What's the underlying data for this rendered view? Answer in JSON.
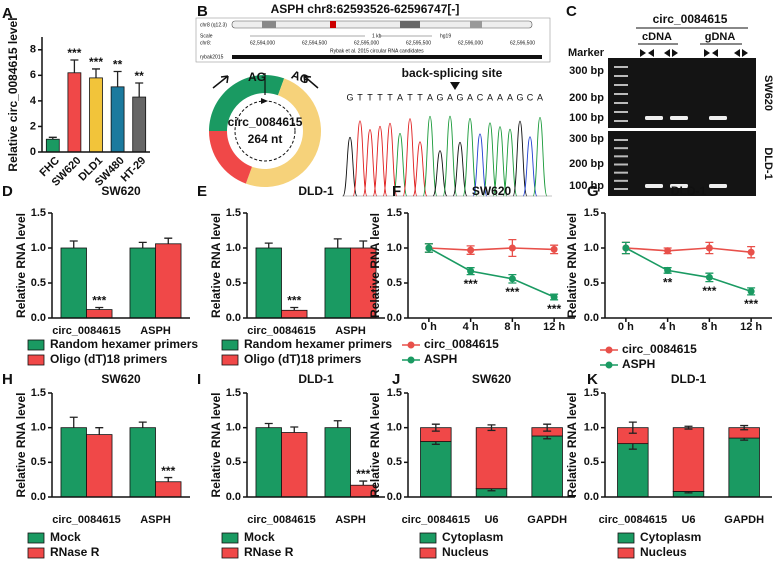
{
  "chart_data": [
    {
      "type": "bar",
      "panel": "A",
      "ylabel": "Relative circ_0084615 level",
      "categories": [
        "FHC",
        "SW620",
        "DLD1",
        "SW480",
        "HT-29"
      ],
      "values": [
        1.0,
        6.2,
        5.8,
        5.1,
        4.3
      ],
      "errors": [
        0.15,
        1.0,
        0.7,
        1.2,
        1.1
      ],
      "colors": [
        "#1a9a62",
        "#f04848",
        "#f2c43a",
        "#1b7a9e",
        "#666666"
      ],
      "annotations": [
        null,
        "***",
        "***",
        "**",
        "**"
      ],
      "ylim": [
        0,
        9
      ],
      "yticks": [
        0,
        2,
        4,
        6,
        8
      ]
    },
    {
      "type": "grouped_bar",
      "panel": "D",
      "title": "SW620",
      "ylabel": "Relative RNA level",
      "categories": [
        "circ_0084615",
        "ASPH"
      ],
      "series": [
        {
          "name": "Random hexamer primers",
          "color": "#1a9a62",
          "values": [
            1.0,
            1.0
          ],
          "errors": [
            0.1,
            0.08
          ],
          "annotations": [
            null,
            null
          ]
        },
        {
          "name": "Oligo (dT)18 primers",
          "color": "#f04848",
          "values": [
            0.12,
            1.06
          ],
          "errors": [
            0.03,
            0.08
          ],
          "annotations": [
            "***",
            null
          ]
        }
      ],
      "ylim": [
        0,
        1.5
      ],
      "yticks": [
        {
          "value": 0,
          "label": "0.0"
        },
        {
          "value": 0.5,
          "label": "0.5"
        },
        {
          "value": 1,
          "label": "1.0"
        },
        {
          "value": 1.5,
          "label": "1.5"
        }
      ]
    },
    {
      "type": "grouped_bar",
      "panel": "E",
      "title": "DLD-1",
      "ylabel": "Relative RNA level",
      "categories": [
        "circ_0084615",
        "ASPH"
      ],
      "series": [
        {
          "name": "Random hexamer primers",
          "color": "#1a9a62",
          "values": [
            1.0,
            1.0
          ],
          "errors": [
            0.07,
            0.13
          ],
          "annotations": [
            null,
            null
          ]
        },
        {
          "name": "Oligo (dT)18 primers",
          "color": "#f04848",
          "values": [
            0.11,
            1.0
          ],
          "errors": [
            0.04,
            0.1
          ],
          "annotations": [
            "***",
            null
          ]
        }
      ],
      "ylim": [
        0,
        1.5
      ],
      "yticks": [
        {
          "value": 0,
          "label": "0.0"
        },
        {
          "value": 0.5,
          "label": "0.5"
        },
        {
          "value": 1,
          "label": "1.0"
        },
        {
          "value": 1.5,
          "label": "1.5"
        }
      ]
    },
    {
      "type": "line",
      "panel": "F",
      "title": "SW620",
      "ylabel": "Relative RNA level",
      "categories": [
        "0 h",
        "4 h",
        "8 h",
        "12 h"
      ],
      "series": [
        {
          "name": "circ_0084615",
          "color": "#e8504a",
          "values": [
            1.0,
            0.97,
            1.0,
            0.98
          ],
          "errors": [
            0.06,
            0.06,
            0.12,
            0.06
          ],
          "annotations": [
            null,
            null,
            null,
            null
          ]
        },
        {
          "name": "ASPH",
          "color": "#1a9a62",
          "values": [
            1.0,
            0.67,
            0.56,
            0.3
          ],
          "errors": [
            0.06,
            0.05,
            0.06,
            0.04
          ],
          "annotations": [
            null,
            "***",
            "***",
            "***"
          ]
        }
      ],
      "ylim": [
        0,
        1.5
      ],
      "yticks": [
        {
          "value": 0,
          "label": "0.0"
        },
        {
          "value": 0.5,
          "label": "0.5"
        },
        {
          "value": 1,
          "label": "1.0"
        },
        {
          "value": 1.5,
          "label": "1.5"
        }
      ]
    },
    {
      "type": "line",
      "panel": "G",
      "title": "DLD-1",
      "ylabel": "Relative RNA level",
      "categories": [
        "0 h",
        "4 h",
        "8 h",
        "12 h"
      ],
      "series": [
        {
          "name": "circ_0084615",
          "color": "#e8504a",
          "values": [
            1.0,
            0.96,
            1.0,
            0.94
          ],
          "errors": [
            0.08,
            0.04,
            0.08,
            0.08
          ],
          "annotations": [
            null,
            null,
            null,
            null
          ]
        },
        {
          "name": "ASPH",
          "color": "#1a9a62",
          "values": [
            1.0,
            0.68,
            0.58,
            0.38
          ],
          "errors": [
            0.08,
            0.04,
            0.06,
            0.05
          ],
          "annotations": [
            null,
            "**",
            "***",
            "***"
          ]
        }
      ],
      "ylim": [
        0,
        1.5
      ],
      "yticks": [
        {
          "value": 0,
          "label": "0.0"
        },
        {
          "value": 0.5,
          "label": "0.5"
        },
        {
          "value": 1,
          "label": "1.0"
        },
        {
          "value": 1.5,
          "label": "1.5"
        }
      ]
    },
    {
      "type": "grouped_bar",
      "panel": "H",
      "title": "SW620",
      "ylabel": "Relative RNA level",
      "categories": [
        "circ_0084615",
        "ASPH"
      ],
      "series": [
        {
          "name": "Mock",
          "color": "#1a9a62",
          "values": [
            1.0,
            1.0
          ],
          "errors": [
            0.15,
            0.08
          ],
          "annotations": [
            null,
            null
          ]
        },
        {
          "name": "RNase R",
          "color": "#f04848",
          "values": [
            0.9,
            0.22
          ],
          "errors": [
            0.1,
            0.06
          ],
          "annotations": [
            null,
            "***"
          ]
        }
      ],
      "ylim": [
        0,
        1.5
      ],
      "yticks": [
        {
          "value": 0,
          "label": "0.0"
        },
        {
          "value": 0.5,
          "label": "0.5"
        },
        {
          "value": 1,
          "label": "1.0"
        },
        {
          "value": 1.5,
          "label": "1.5"
        }
      ]
    },
    {
      "type": "grouped_bar",
      "panel": "I",
      "title": "DLD-1",
      "ylabel": "Relative RNA level",
      "categories": [
        "circ_0084615",
        "ASPH"
      ],
      "series": [
        {
          "name": "Mock",
          "color": "#1a9a62",
          "values": [
            1.0,
            1.0
          ],
          "errors": [
            0.06,
            0.1
          ],
          "annotations": [
            null,
            null
          ]
        },
        {
          "name": "RNase R",
          "color": "#f04848",
          "values": [
            0.93,
            0.17
          ],
          "errors": [
            0.08,
            0.06
          ],
          "annotations": [
            null,
            "***"
          ]
        }
      ],
      "ylim": [
        0,
        1.5
      ],
      "yticks": [
        {
          "value": 0,
          "label": "0.0"
        },
        {
          "value": 0.5,
          "label": "0.5"
        },
        {
          "value": 1,
          "label": "1.0"
        },
        {
          "value": 1.5,
          "label": "1.5"
        }
      ]
    },
    {
      "type": "stacked_bar",
      "panel": "J",
      "title": "SW620",
      "ylabel": "Relative RNA level",
      "categories": [
        "circ_0084615",
        "U6",
        "GAPDH"
      ],
      "series": [
        {
          "name": "Cytoplasm",
          "color": "#1a9a62",
          "values": [
            0.8,
            0.12,
            0.88
          ],
          "errors": [
            0.04,
            0.03,
            0.04
          ]
        },
        {
          "name": "Nucleus",
          "color": "#f04848",
          "values": [
            0.2,
            0.88,
            0.12
          ],
          "errors": [
            0.05,
            0.04,
            0.05
          ]
        }
      ],
      "ylim": [
        0,
        1.5
      ],
      "yticks": [
        {
          "value": 0,
          "label": "0.0"
        },
        {
          "value": 0.5,
          "label": "0.5"
        },
        {
          "value": 1,
          "label": "1.0"
        },
        {
          "value": 1.5,
          "label": "1.5"
        }
      ]
    },
    {
      "type": "stacked_bar",
      "panel": "K",
      "title": "DLD-1",
      "ylabel": "Relative RNA level",
      "categories": [
        "circ_0084615",
        "U6",
        "GAPDH"
      ],
      "series": [
        {
          "name": "Cytoplasm",
          "color": "#1a9a62",
          "values": [
            0.77,
            0.08,
            0.85
          ],
          "errors": [
            0.08,
            0.02,
            0.03
          ]
        },
        {
          "name": "Nucleus",
          "color": "#f04848",
          "values": [
            0.23,
            0.92,
            0.15
          ],
          "errors": [
            0.08,
            0.02,
            0.03
          ]
        }
      ],
      "ylim": [
        0,
        1.5
      ],
      "yticks": [
        {
          "value": 0,
          "label": "0.0"
        },
        {
          "value": 0.5,
          "label": "0.5"
        },
        {
          "value": 1,
          "label": "1.0"
        },
        {
          "value": 1.5,
          "label": "1.5"
        }
      ]
    }
  ],
  "panel_b": {
    "panel": "B",
    "title": "ASPH chr8:62593526-62596747[-]",
    "browser": {
      "chromosome": "chr8 (q12.3)",
      "scale": "Scale",
      "chrom": "chr8:",
      "scale_bar": "1 kb",
      "genome": "hg19",
      "positions": [
        "62,594,000",
        "62,594,500",
        "62,595,000",
        "62,595,500",
        "62,596,000",
        "62,596,500"
      ],
      "track": "rybak2015",
      "track_note": "Rybak et al. 2015 circular RNA candidates"
    },
    "splice_left": "AG",
    "splice_right": "AG",
    "circ_name": "circ_0084615",
    "circ_length": "264 nt",
    "site": "back-splicing site",
    "sequence": [
      "G",
      "T",
      "T",
      "T",
      "T",
      "A",
      "T",
      "T",
      "A",
      "G",
      "A",
      "G",
      "A",
      "C",
      "A",
      "A",
      "A",
      "G",
      "C",
      "A"
    ]
  },
  "panel_c": {
    "panel": "C",
    "title": "circ_0084615",
    "groups": [
      "cDNA",
      "gDNA"
    ],
    "marker": "Marker",
    "gels": [
      {
        "name": "SW620",
        "ladder": [
          "300 bp",
          "200 bp",
          "100 bp"
        ]
      },
      {
        "name": "DLD-1",
        "ladder": [
          "300 bp",
          "200 bp",
          "100 bp"
        ]
      }
    ]
  }
}
